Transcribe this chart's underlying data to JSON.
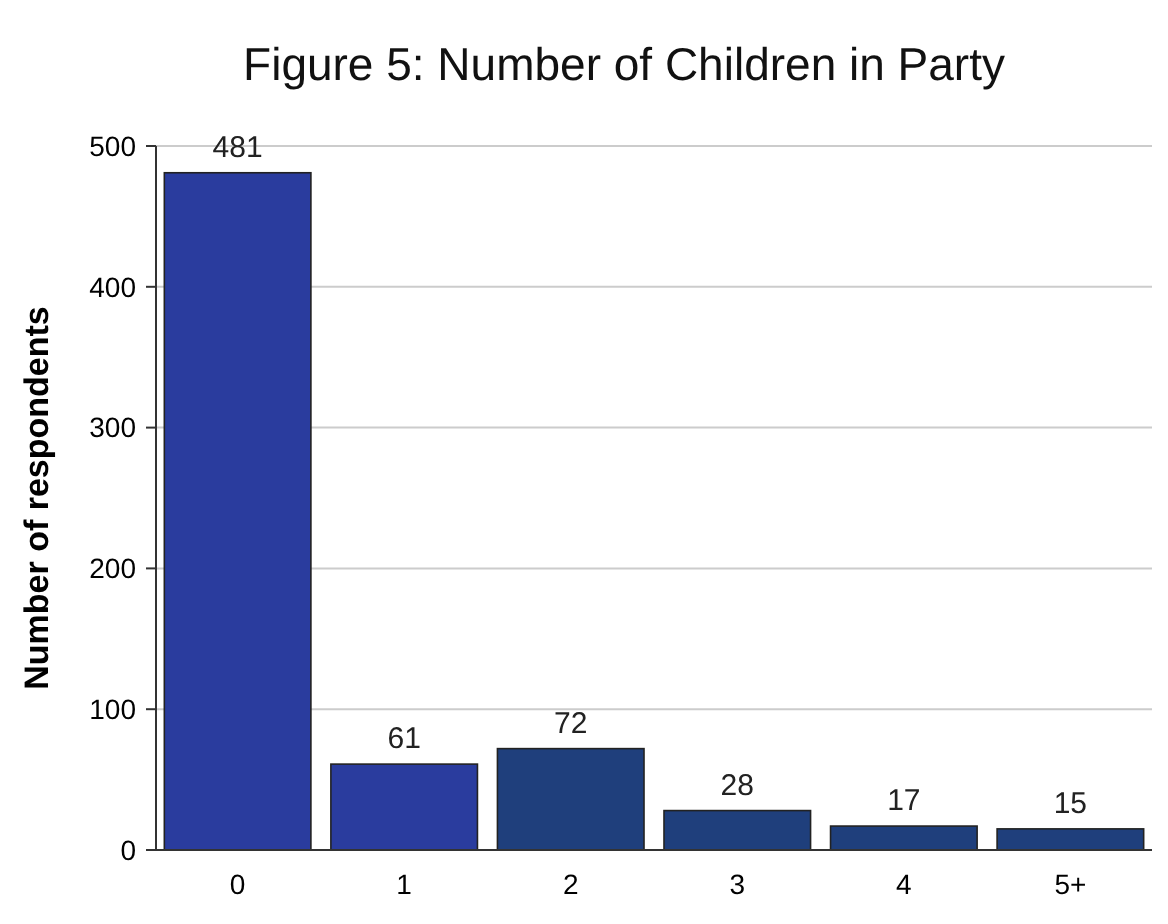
{
  "chart_data": {
    "type": "bar",
    "title": "Figure 5: Number of Children in Party",
    "ylabel": "Number of respondents",
    "categories": [
      "0",
      "1",
      "2",
      "3",
      "4",
      "5+"
    ],
    "values": [
      481,
      61,
      72,
      28,
      17,
      15
    ],
    "colors": [
      "#2a3c9e",
      "#2a3c9e",
      "#1f3f7c",
      "#1f3f7c",
      "#1f3f7c",
      "#1f3f7c"
    ],
    "ylim": [
      0,
      500
    ],
    "yticks": [
      0,
      100,
      200,
      300,
      400,
      500
    ],
    "grid": "y",
    "data_labels": true
  }
}
